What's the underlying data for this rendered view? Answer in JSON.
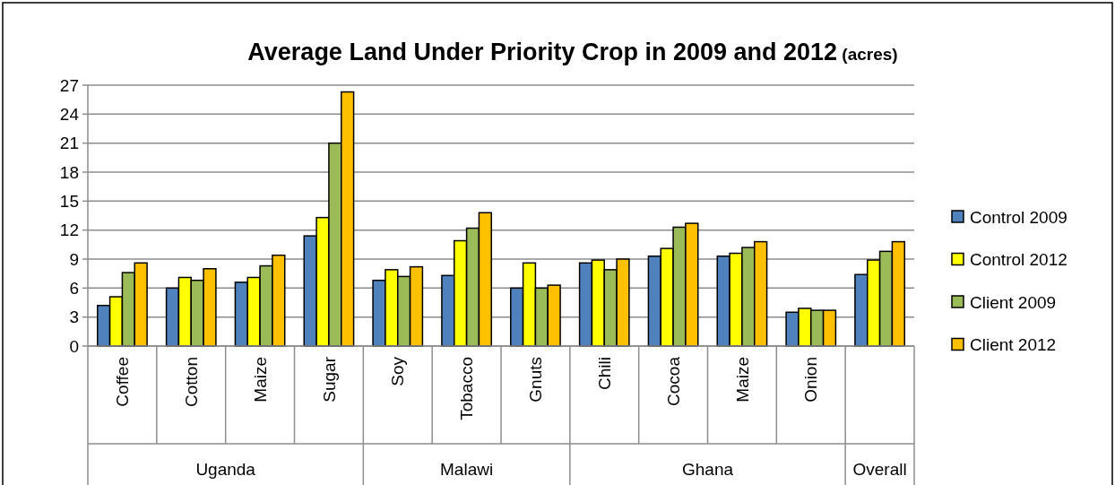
{
  "chart_data": {
    "type": "bar",
    "title": "Average Land Under Priority Crop in 2009 and 2012 (acres)",
    "categories": [
      "Coffee",
      "Cotton",
      "Maize",
      "Sugar",
      "Soy",
      "Tobacco",
      "Gnuts",
      "Chili",
      "Cocoa",
      "Maize",
      "Onion",
      null
    ],
    "series": [
      {
        "name": "Control 2009",
        "color": "#4f81bd",
        "values": [
          4.2,
          6.0,
          6.6,
          11.4,
          6.8,
          7.3,
          6.0,
          8.6,
          9.3,
          9.3,
          3.5,
          7.4
        ]
      },
      {
        "name": "Control 2012",
        "color": "#ffff00",
        "values": [
          5.1,
          7.1,
          7.1,
          13.3,
          7.9,
          10.9,
          8.6,
          8.9,
          10.1,
          9.6,
          3.9,
          8.9
        ]
      },
      {
        "name": "Client 2009",
        "color": "#9bbb59",
        "values": [
          7.6,
          6.8,
          8.3,
          21.0,
          7.2,
          12.2,
          6.0,
          7.9,
          12.3,
          10.2,
          3.7,
          9.8
        ]
      },
      {
        "name": "Client 2012",
        "color": "#ffc000",
        "values": [
          8.6,
          8.0,
          9.4,
          26.3,
          8.2,
          13.8,
          6.3,
          9.0,
          12.7,
          10.8,
          3.7,
          10.8
        ]
      }
    ],
    "ylim": [
      0,
      27
    ],
    "yticks": [
      0,
      3,
      6,
      9,
      12,
      15,
      18,
      21,
      24,
      27
    ],
    "grid": "y",
    "legend": "right",
    "annotations": [
      "Uganda",
      "Malawi",
      "Ghana",
      "Overall"
    ]
  }
}
